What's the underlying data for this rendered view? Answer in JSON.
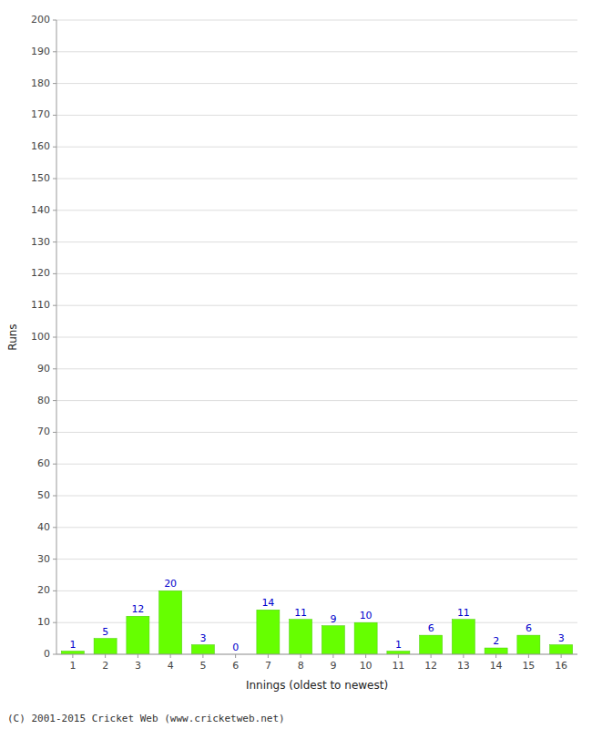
{
  "chart_data": {
    "type": "bar",
    "categories": [
      "1",
      "2",
      "3",
      "4",
      "5",
      "6",
      "7",
      "8",
      "9",
      "10",
      "11",
      "12",
      "13",
      "14",
      "15",
      "16"
    ],
    "values": [
      1,
      5,
      12,
      20,
      3,
      0,
      14,
      11,
      9,
      10,
      1,
      6,
      11,
      2,
      6,
      3
    ],
    "color": "#66ff00",
    "xlabel": "Innings (oldest to newest)",
    "ylabel": "Runs",
    "ylim": [
      0,
      200
    ],
    "yticks": [
      0,
      10,
      20,
      30,
      40,
      50,
      60,
      70,
      80,
      90,
      100,
      110,
      120,
      130,
      140,
      150,
      160,
      170,
      180,
      190,
      200
    ],
    "grid": true,
    "data_labels": true,
    "footer": "(C) 2001-2015 Cricket Web (www.cricketweb.net)"
  }
}
